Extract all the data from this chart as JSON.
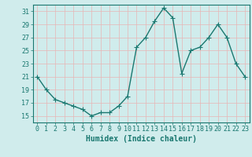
{
  "x": [
    0,
    1,
    2,
    3,
    4,
    5,
    6,
    7,
    8,
    9,
    10,
    11,
    12,
    13,
    14,
    15,
    16,
    17,
    18,
    19,
    20,
    21,
    22,
    23
  ],
  "y": [
    21,
    19,
    17.5,
    17,
    16.5,
    16,
    15,
    15.5,
    15.5,
    16.5,
    18,
    25.5,
    27,
    29.5,
    31.5,
    30,
    21.5,
    25,
    25.5,
    27,
    29,
    27,
    23,
    21
  ],
  "line_color": "#1a7870",
  "marker": "+",
  "marker_size": 4,
  "bg_color": "#d0ecec",
  "grid_color": "#e8b4b4",
  "axis_color": "#1a7870",
  "xlabel": "Humidex (Indice chaleur)",
  "xlabel_fontsize": 7,
  "tick_fontsize": 6,
  "xlim": [
    -0.5,
    23.5
  ],
  "ylim": [
    14,
    32
  ],
  "yticks": [
    15,
    17,
    19,
    21,
    23,
    25,
    27,
    29,
    31
  ],
  "xticks": [
    0,
    1,
    2,
    3,
    4,
    5,
    6,
    7,
    8,
    9,
    10,
    11,
    12,
    13,
    14,
    15,
    16,
    17,
    18,
    19,
    20,
    21,
    22,
    23
  ]
}
